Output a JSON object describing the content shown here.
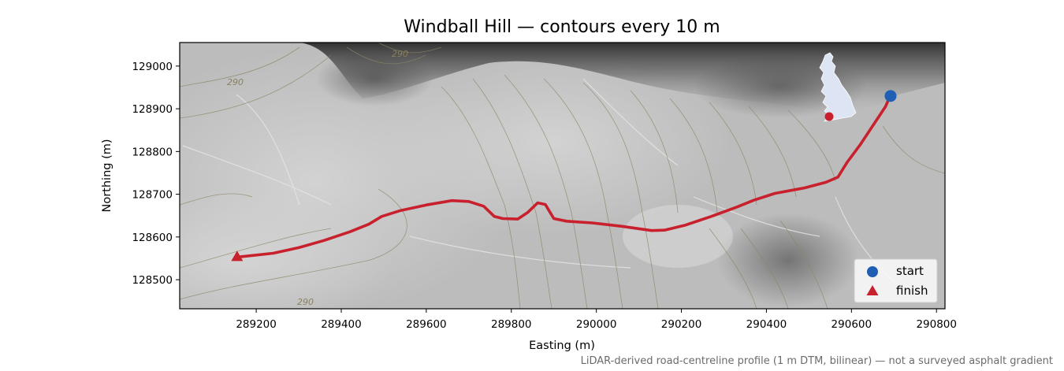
{
  "figure": {
    "title": "Windball Hill — contours every 10 m",
    "caption": "LiDAR-derived road-centreline profile (1 m DTM, bilinear) — not a surveyed asphalt gradient"
  },
  "map": {
    "type": "map",
    "xlabel": "Easting (m)",
    "ylabel": "Northing (m)",
    "xlim": [
      289020,
      290820
    ],
    "ylim": [
      128432,
      129055
    ],
    "xticks": [
      289200,
      289400,
      289600,
      289800,
      290000,
      290200,
      290400,
      290600,
      290800
    ],
    "yticks": [
      128500,
      128600,
      128700,
      128800,
      128900,
      129000
    ],
    "contour_interval_m": 10,
    "contour_labels": [
      "290",
      "290",
      "290"
    ],
    "route": {
      "name": "road-centreline",
      "color": "#c8202d",
      "points": [
        [
          289155,
          128553
        ],
        [
          289240,
          128562
        ],
        [
          289300,
          128575
        ],
        [
          289360,
          128592
        ],
        [
          289420,
          128612
        ],
        [
          289465,
          128630
        ],
        [
          289495,
          128648
        ],
        [
          289540,
          128662
        ],
        [
          289600,
          128675
        ],
        [
          289660,
          128685
        ],
        [
          289700,
          128683
        ],
        [
          289735,
          128672
        ],
        [
          289760,
          128648
        ],
        [
          289780,
          128643
        ],
        [
          289815,
          128642
        ],
        [
          289838,
          128657
        ],
        [
          289862,
          128680
        ],
        [
          289880,
          128676
        ],
        [
          289900,
          128643
        ],
        [
          289930,
          128637
        ],
        [
          289990,
          128633
        ],
        [
          290060,
          128625
        ],
        [
          290130,
          128615
        ],
        [
          290160,
          128616
        ],
        [
          290210,
          128628
        ],
        [
          290270,
          128648
        ],
        [
          290330,
          128670
        ],
        [
          290370,
          128686
        ],
        [
          290420,
          128702
        ],
        [
          290490,
          128715
        ],
        [
          290540,
          128728
        ],
        [
          290568,
          128740
        ],
        [
          290590,
          128775
        ],
        [
          290620,
          128815
        ],
        [
          290650,
          128860
        ],
        [
          290680,
          128905
        ],
        [
          290690,
          128928
        ]
      ]
    },
    "start": {
      "label": "start",
      "x": 290692,
      "y": 128930,
      "color": "#1f5fb4"
    },
    "finish": {
      "label": "finish",
      "x": 289155,
      "y": 128553,
      "color": "#c8202d"
    },
    "legend": {
      "position": "lower-right",
      "entries": [
        "start",
        "finish"
      ]
    },
    "inset": {
      "content": "Great Britain locator",
      "marker_color": "#c8202d",
      "land_color": "#dde4f3"
    }
  }
}
